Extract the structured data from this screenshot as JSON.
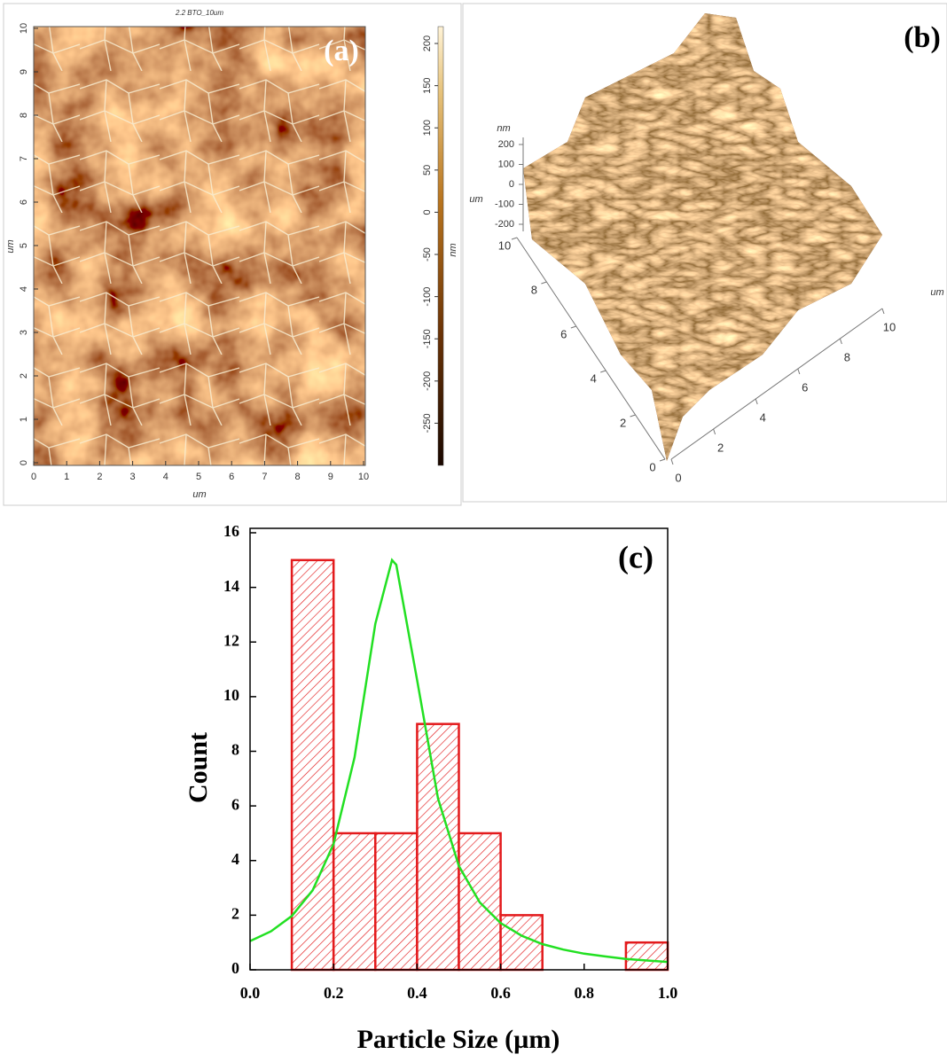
{
  "chart_data": [
    {
      "type": "heatmap",
      "title": "2.2 BTO_10um",
      "label": "(a)",
      "xlabel": "um",
      "ylabel": "um",
      "xlim": [
        0,
        10
      ],
      "xticks": [
        0,
        1,
        2,
        3,
        4,
        5,
        6,
        7,
        8,
        9,
        10
      ],
      "ylim": [
        0,
        10
      ],
      "yticks": [
        0,
        1,
        2,
        3,
        4,
        5,
        6,
        7,
        8,
        9,
        10
      ],
      "colorbar_label": "nm",
      "colorbar_lim": [
        -300,
        220
      ],
      "colorbar_ticks": [
        -250,
        -200,
        -150,
        -100,
        -50,
        0,
        50,
        100,
        150,
        200
      ]
    },
    {
      "type": "surface3d",
      "label": "(b)",
      "xlabel": "um",
      "ylabel": "um",
      "zlabel": "nm",
      "xlim": [
        0,
        10
      ],
      "xticks": [
        0,
        2,
        4,
        6,
        8,
        10
      ],
      "ylim": [
        0,
        10
      ],
      "yticks": [
        0,
        2,
        4,
        6,
        8,
        10
      ],
      "zlim": [
        -200,
        200
      ],
      "zticks": [
        -200,
        -100,
        0,
        100,
        200
      ]
    },
    {
      "type": "histogram",
      "label": "(c)",
      "xlabel": "Particle Size (µm)",
      "ylabel": "Count",
      "bins": [
        0.1,
        0.2,
        0.3,
        0.4,
        0.5,
        0.6,
        0.7,
        0.8,
        0.9,
        1.0
      ],
      "values": [
        15,
        5,
        5,
        9,
        5,
        2,
        0,
        0,
        1
      ],
      "color": "#e31a1c",
      "fit": {
        "color": "#22e022",
        "x": [
          0,
          0.05,
          0.1,
          0.15,
          0.2,
          0.25,
          0.3,
          0.34,
          0.35,
          0.4,
          0.45,
          0.5,
          0.55,
          0.6,
          0.65,
          0.7,
          0.75,
          0.8,
          0.85,
          0.9,
          0.95,
          1.0
        ],
        "values": [
          1.05,
          1.41,
          1.97,
          2.91,
          4.61,
          7.77,
          12.67,
          15.0,
          14.83,
          10.61,
          6.27,
          3.8,
          2.47,
          1.71,
          1.25,
          0.94,
          0.74,
          0.59,
          0.49,
          0.4,
          0.34,
          0.29
        ]
      },
      "xlim": [
        0,
        1
      ],
      "xticks": [
        {
          "value": 0,
          "label": "0.0"
        },
        0.2,
        0.4,
        0.6,
        0.8,
        {
          "value": 1,
          "label": "1.0"
        }
      ],
      "ylim": [
        0,
        16
      ],
      "yticks": [
        0,
        2,
        4,
        6,
        8,
        10,
        12,
        14,
        16
      ]
    }
  ]
}
